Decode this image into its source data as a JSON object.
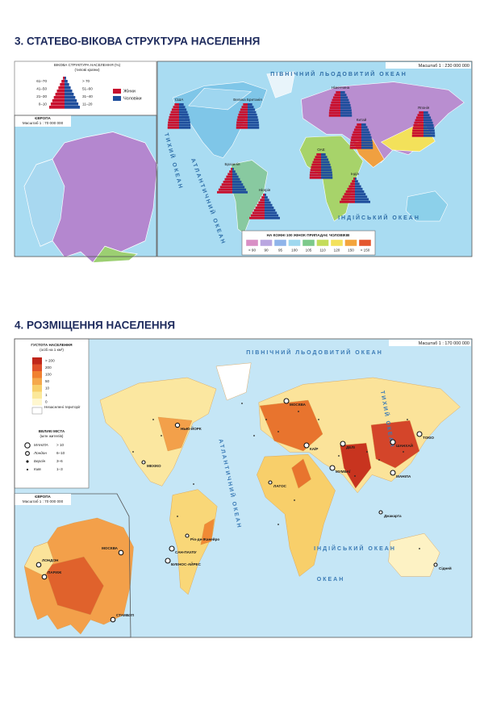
{
  "section3": {
    "title": "3. СТАТЕВО-ВІКОВА СТРУКТУРА НАСЕЛЕННЯ",
    "age_legend": {
      "title": "ВІКОВА СТРУКТУРА НАСЕЛЕННЯ (%)",
      "subtitle": "(типові країни)",
      "left_groups": [
        "61–70",
        "41–50",
        "21–30",
        "0–10"
      ],
      "right_groups": [
        "> 70",
        "51–60",
        "31–40",
        "11–20"
      ],
      "female": "Жінки",
      "male": "Чоловіки"
    },
    "europe_inset": {
      "title": "ЄВРОПА",
      "scale": "Масштаб 1 : 70 000 000"
    },
    "map": {
      "scale": "Масштаб 1 : 230 000 000",
      "arctic": "ПІВНІЧНИЙ ЛЬОДОВИТИЙ ОКЕАН",
      "pacific": "ТИХИЙ ОКЕАН",
      "atlantic": "АТЛАНТИЧНИЙ ОКЕАН",
      "indian": "ІНДІЙСЬКИЙ ОКЕАН",
      "countries": [
        "США",
        "Велика Британія",
        "Німеччина",
        "Китай",
        "Японія",
        "ОАЕ",
        "Бразилія",
        "Індія",
        "Нігерія"
      ]
    },
    "sex_ratio_legend": {
      "title": "НА КОЖНІ 100 ЖІНОК ПРИПАДАЄ ЧОЛОВІКІВ",
      "classes": [
        "< 90",
        "90",
        "95",
        "100",
        "105",
        "110",
        "120",
        "150",
        "> 150"
      ]
    }
  },
  "section4": {
    "title": "4. РОЗМІЩЕННЯ НАСЕЛЕННЯ",
    "density_legend": {
      "title": "ГУСТОТА НАСЕЛЕННЯ",
      "subtitle": "(осіб на 1 км²)",
      "classes": [
        "> 200",
        "200",
        "100",
        "50",
        "10",
        "1",
        "0"
      ],
      "unsettled": "Незаселені території"
    },
    "cities_legend": {
      "title": "ВЕЛИКІ МІСТА",
      "subtitle": "(млн жителів)",
      "examples": [
        {
          "name": "МАНІЛА",
          "range": "> 10"
        },
        {
          "name": "Лондон",
          "range": "6–10"
        },
        {
          "name": "Берлін",
          "range": "3–6"
        },
        {
          "name": "Київ",
          "range": "1–3"
        }
      ]
    },
    "europe_inset": {
      "title": "ЄВРОПА",
      "scale": "Масштаб 1 : 70 000 000",
      "cities": [
        "МОСКВА",
        "ЛОНДОН",
        "ПАРИЖ",
        "СТАМБУЛ"
      ]
    },
    "map": {
      "scale": "Масштаб 1 : 170 000 000",
      "arctic": "ПІВНІЧНИЙ ЛЬОДОВИТИЙ ОКЕАН",
      "pacific": "ТИХИЙ ОКЕАН",
      "atlantic": "АТЛАНТИЧНИЙ ОКЕАН",
      "indian": "ІНДІЙСЬКИЙ ОКЕАН",
      "ocean": "ОКЕАН",
      "cities": [
        "НЬЮ-ЙОРК",
        "МЕХІКО",
        "САН-ПАУЛУ",
        "Ріо-де-Жанейро",
        "БУЕНОС-АЙРЕС",
        "МОСКВА",
        "КАЇР",
        "ЛАГОС",
        "МУМБАЇ",
        "ДЕЛІ",
        "ШАНХАЙ",
        "ТОКІО",
        "МАНІЛА",
        "Джакарта",
        "Сідней"
      ]
    }
  }
}
